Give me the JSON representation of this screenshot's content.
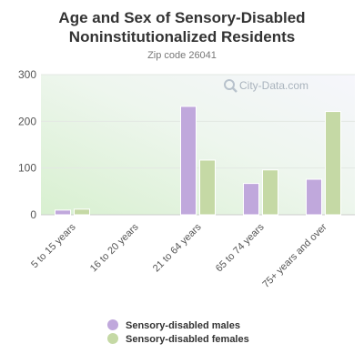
{
  "chart_data": {
    "type": "bar",
    "title": "Age and Sex of Sensory-Disabled Noninstitutionalized Residents",
    "subtitle": "Zip code 26041",
    "categories": [
      "5 to 15 years",
      "16 to 20 years",
      "21 to 64 years",
      "65 to 74 years",
      "75+ years and over"
    ],
    "series": [
      {
        "name": "Sensory-disabled males",
        "values": [
          10,
          0,
          232,
          67,
          76
        ],
        "color": "#c0a8dc"
      },
      {
        "name": "Sensory-disabled females",
        "values": [
          12,
          0,
          117,
          96,
          221
        ],
        "color": "#c5d9a5"
      }
    ],
    "yticks": [
      0,
      100,
      200,
      300
    ],
    "ylim": [
      0,
      300
    ],
    "xlabel": "",
    "ylabel": "",
    "grid": true,
    "legend": "bottom"
  },
  "watermark": "City-Data.com",
  "watermark_icon": "magnifier-icon"
}
